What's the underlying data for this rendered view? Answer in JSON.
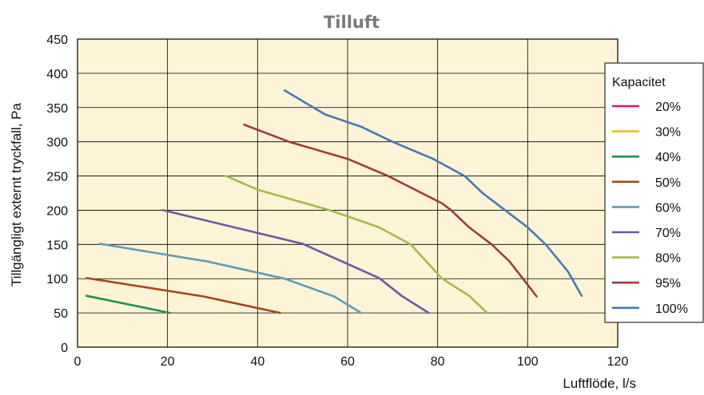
{
  "chart_data": {
    "type": "line",
    "title": "Tilluft",
    "xlabel": "Luftflöde, l/s",
    "ylabel": "Tillgängligt externt tryckfall, Pa",
    "xlim": [
      0,
      120
    ],
    "ylim": [
      0,
      450
    ],
    "xticks": [
      "0",
      "20",
      "40",
      "60",
      "80",
      "100",
      "120"
    ],
    "yticks": [
      "0",
      "50",
      "100",
      "150",
      "200",
      "250",
      "300",
      "350",
      "400",
      "450"
    ],
    "grid": true,
    "background_color": "#fdf3d6",
    "legend": {
      "title": "Kapacitet",
      "position": "right"
    },
    "series": [
      {
        "name": "20%",
        "color": "#d6157e",
        "x": [],
        "y": []
      },
      {
        "name": "30%",
        "color": "#e5c21a",
        "x": [],
        "y": []
      },
      {
        "name": "40%",
        "color": "#22904a",
        "x": [
          2,
          20.5
        ],
        "y": [
          75,
          50
        ]
      },
      {
        "name": "50%",
        "color": "#a3461d",
        "x": [
          2,
          28,
          45
        ],
        "y": [
          101,
          74,
          50
        ]
      },
      {
        "name": "60%",
        "color": "#5f9bb3",
        "x": [
          5,
          29,
          46,
          57,
          63
        ],
        "y": [
          151,
          125,
          100,
          74,
          50
        ]
      },
      {
        "name": "70%",
        "color": "#6b59a3",
        "x": [
          19,
          50,
          67,
          72,
          78
        ],
        "y": [
          200,
          151,
          101,
          75,
          50
        ]
      },
      {
        "name": "80%",
        "color": "#a7b94b",
        "x": [
          33,
          40,
          56,
          67,
          74,
          81,
          87,
          91
        ],
        "y": [
          250,
          230,
          200,
          175,
          150,
          100,
          75,
          50
        ]
      },
      {
        "name": "95%",
        "color": "#9b3c3c",
        "x": [
          37,
          47,
          60,
          69,
          81,
          83,
          87,
          92,
          96,
          102
        ],
        "y": [
          325,
          300,
          275,
          250,
          210,
          200,
          175,
          150,
          125,
          74
        ]
      },
      {
        "name": "100%",
        "color": "#4a78b0",
        "x": [
          46,
          55,
          63,
          70,
          79,
          86,
          90,
          100,
          104,
          109,
          112
        ],
        "y": [
          375,
          340,
          322,
          300,
          275,
          250,
          225,
          175,
          150,
          110,
          75
        ]
      }
    ]
  }
}
